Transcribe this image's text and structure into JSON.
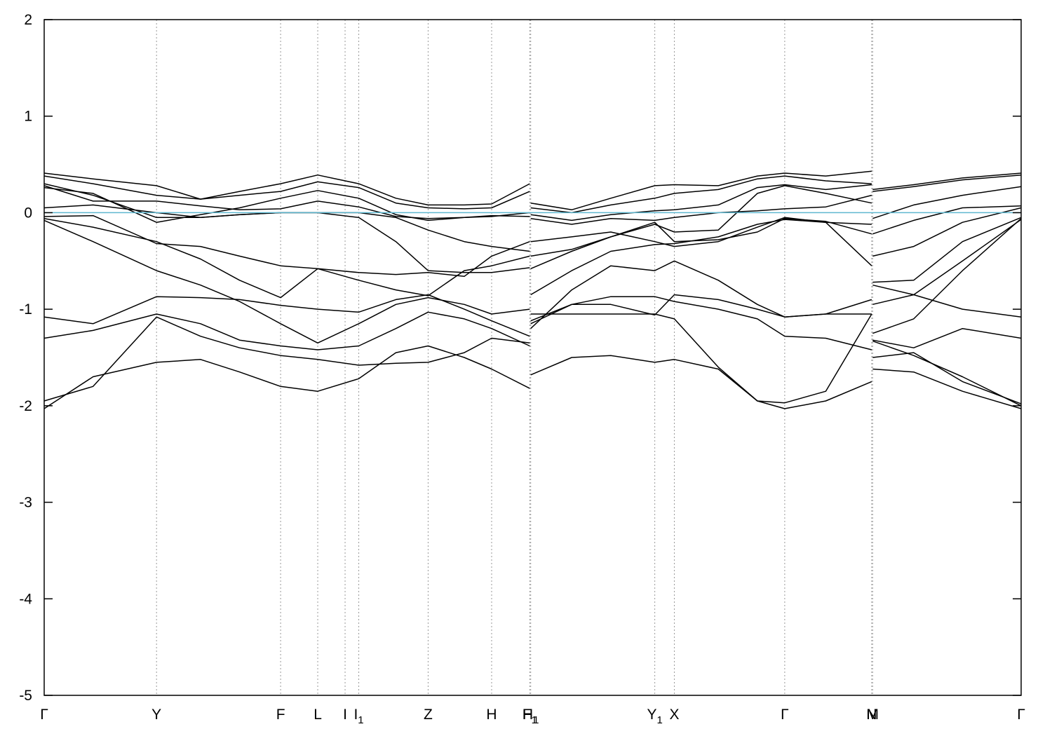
{
  "chart_data": {
    "type": "line",
    "title": "",
    "xlabel": "",
    "ylabel": "",
    "ylim": [
      -5,
      2
    ],
    "yticks": [
      2,
      1,
      0,
      -1,
      -2,
      -3,
      -4,
      -5
    ],
    "fermi_level": 0,
    "fermi_color": "#5fb8d0",
    "band_color": "#000000",
    "grid": "vertical dotted lines at high-symmetry points",
    "xlim": [
      0,
      10
    ],
    "kpoints": [
      {
        "label": "Γ",
        "sub": "",
        "x": 0.0
      },
      {
        "label": "Y",
        "sub": "",
        "x": 1.15
      },
      {
        "label": "F",
        "sub": "",
        "x": 2.42
      },
      {
        "label": "L",
        "sub": "",
        "x": 2.8
      },
      {
        "label": "I",
        "sub": "",
        "x": 3.08
      },
      {
        "label": "I",
        "sub": "1",
        "x": 3.22
      },
      {
        "label": "Z",
        "sub": "",
        "x": 3.93
      },
      {
        "label": "H",
        "sub": "",
        "x": 4.58
      },
      {
        "label": "F",
        "sub": "1",
        "x": 4.97
      },
      {
        "label": "H",
        "sub": "1",
        "x": 4.98
      },
      {
        "label": "Y",
        "sub": "1",
        "x": 6.25
      },
      {
        "label": "X",
        "sub": "",
        "x": 6.45
      },
      {
        "label": "Γ",
        "sub": "",
        "x": 7.58
      },
      {
        "label": "N",
        "sub": "",
        "x": 8.47
      },
      {
        "label": "M",
        "sub": "",
        "x": 8.48
      },
      {
        "label": "Γ",
        "sub": "",
        "x": 10.0
      }
    ],
    "x": [
      0.0,
      0.5,
      1.15,
      1.6,
      2.0,
      2.42,
      2.8,
      3.22,
      3.6,
      3.93,
      4.3,
      4.58,
      4.97,
      4.98,
      5.4,
      5.8,
      6.25,
      6.45,
      6.9,
      7.3,
      7.58,
      8.0,
      8.47,
      8.48,
      8.9,
      9.4,
      10.0
    ],
    "series": [
      {
        "values": [
          0.41,
          0.35,
          0.28,
          0.14,
          0.22,
          0.3,
          0.39,
          0.3,
          0.15,
          0.08,
          0.08,
          0.09,
          0.3,
          0.1,
          0.03,
          0.15,
          0.28,
          0.29,
          0.28,
          0.38,
          0.41,
          0.38,
          0.43,
          0.24,
          0.29,
          0.36,
          0.41
        ]
      },
      {
        "values": [
          0.38,
          0.3,
          0.18,
          0.14,
          0.18,
          0.22,
          0.32,
          0.26,
          0.1,
          0.05,
          0.04,
          0.05,
          0.22,
          0.05,
          0.0,
          0.08,
          0.15,
          0.2,
          0.24,
          0.35,
          0.38,
          0.33,
          0.3,
          0.22,
          0.27,
          0.34,
          0.39
        ]
      },
      {
        "values": [
          0.28,
          0.12,
          0.12,
          0.07,
          0.03,
          0.04,
          0.12,
          0.06,
          -0.04,
          -0.06,
          -0.05,
          -0.04,
          0.0,
          -0.02,
          -0.08,
          -0.02,
          0.02,
          0.03,
          0.08,
          0.26,
          0.29,
          0.24,
          0.29,
          -0.06,
          0.08,
          0.18,
          0.27
        ]
      },
      {
        "values": [
          0.26,
          0.2,
          -0.1,
          -0.02,
          0.05,
          0.15,
          0.23,
          0.15,
          -0.02,
          -0.08,
          -0.05,
          -0.03,
          -0.04,
          -0.06,
          -0.12,
          -0.06,
          -0.08,
          -0.05,
          0.0,
          0.02,
          0.04,
          0.06,
          0.18,
          -0.22,
          -0.08,
          0.05,
          0.07
        ]
      },
      {
        "values": [
          0.05,
          0.08,
          0.0,
          -0.05,
          -0.02,
          0.0,
          0.0,
          0.0,
          -0.05,
          -0.18,
          -0.3,
          -0.35,
          -0.4,
          -0.45,
          -0.38,
          -0.25,
          -0.12,
          -0.2,
          -0.18,
          0.2,
          0.28,
          0.2,
          0.1,
          -0.45,
          -0.35,
          -0.1,
          0.05
        ]
      },
      {
        "values": [
          0.3,
          0.18,
          -0.05,
          -0.05,
          -0.02,
          0.0,
          0.0,
          -0.05,
          -0.3,
          -0.6,
          -0.62,
          -0.62,
          -0.57,
          -0.58,
          -0.4,
          -0.25,
          -0.1,
          -0.3,
          -0.28,
          -0.2,
          -0.06,
          -0.09,
          -0.22,
          -0.72,
          -0.7,
          -0.3,
          -0.05
        ]
      },
      {
        "values": [
          -0.04,
          -0.03,
          -0.32,
          -0.35,
          -0.45,
          -0.55,
          -0.58,
          -0.62,
          -0.64,
          -0.62,
          -0.66,
          -0.45,
          -0.3,
          -0.3,
          -0.25,
          -0.2,
          -0.3,
          -0.35,
          -0.3,
          -0.15,
          -0.05,
          -0.1,
          -0.55,
          -0.95,
          -0.85,
          -0.5,
          -0.07
        ]
      },
      {
        "values": [
          -0.06,
          -0.15,
          -0.3,
          -0.48,
          -0.7,
          -0.88,
          -0.58,
          -0.7,
          -0.8,
          -0.86,
          -0.6,
          -0.55,
          -0.45,
          -0.85,
          -0.6,
          -0.4,
          -0.33,
          -0.32,
          -0.25,
          -0.12,
          -0.07,
          -0.1,
          -0.12,
          -1.25,
          -1.1,
          -0.6,
          -0.06
        ]
      },
      {
        "values": [
          -0.08,
          -0.3,
          -0.6,
          -0.75,
          -0.92,
          -1.15,
          -1.35,
          -1.15,
          -0.95,
          -0.88,
          -0.95,
          -1.05,
          -1.0,
          -1.2,
          -0.8,
          -0.55,
          -0.6,
          -0.5,
          -0.7,
          -0.95,
          -1.08,
          -1.05,
          -0.9,
          -0.75,
          -0.85,
          -1.0,
          -1.08
        ]
      },
      {
        "values": [
          -1.08,
          -1.15,
          -0.87,
          -0.88,
          -0.9,
          -0.96,
          -1.0,
          -1.03,
          -0.9,
          -0.85,
          -1.0,
          -1.12,
          -1.28,
          -1.15,
          -0.95,
          -0.87,
          -0.87,
          -0.92,
          -1.0,
          -1.1,
          -1.28,
          -1.3,
          -1.42,
          -1.32,
          -1.4,
          -1.2,
          -1.3
        ]
      },
      {
        "values": [
          -1.3,
          -1.22,
          -1.05,
          -1.15,
          -1.32,
          -1.38,
          -1.42,
          -1.38,
          -1.2,
          -1.03,
          -1.1,
          -1.2,
          -1.38,
          -1.12,
          -0.95,
          -0.95,
          -1.06,
          -0.85,
          -0.9,
          -1.0,
          -1.08,
          -1.05,
          -1.05,
          -1.5,
          -1.45,
          -1.75,
          -1.98
        ]
      },
      {
        "values": [
          -1.95,
          -1.8,
          -1.08,
          -1.28,
          -1.4,
          -1.48,
          -1.52,
          -1.58,
          -1.56,
          -1.55,
          -1.45,
          -1.3,
          -1.35,
          -1.05,
          -1.05,
          -1.05,
          -1.05,
          -1.1,
          -1.6,
          -1.95,
          -1.97,
          -1.85,
          -1.05,
          -1.33,
          -1.48,
          -1.7,
          -2.0
        ]
      },
      {
        "values": [
          -2.03,
          -1.7,
          -1.55,
          -1.52,
          -1.65,
          -1.8,
          -1.85,
          -1.72,
          -1.45,
          -1.38,
          -1.5,
          -1.62,
          -1.82,
          -1.68,
          -1.5,
          -1.48,
          -1.55,
          -1.52,
          -1.62,
          -1.95,
          -2.03,
          -1.95,
          -1.75,
          -1.62,
          -1.65,
          -1.85,
          -2.03
        ]
      }
    ]
  }
}
